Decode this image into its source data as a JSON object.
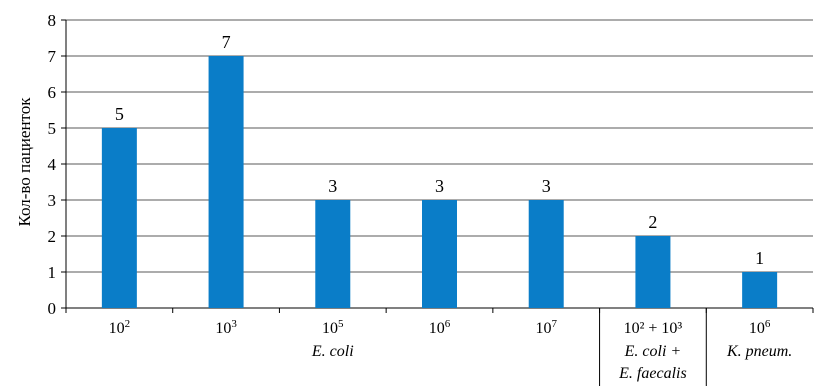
{
  "chart_data": {
    "type": "bar",
    "ylabel": "Кол-во пациенток",
    "xlabel": "",
    "title": "",
    "ylim": [
      0,
      8
    ],
    "yticks": [
      0,
      1,
      2,
      3,
      4,
      5,
      6,
      7,
      8
    ],
    "grid": true,
    "bar_color": "#0a7dc8",
    "categories": [
      {
        "main": "10",
        "exp": "2",
        "sub": []
      },
      {
        "main": "10",
        "exp": "3",
        "sub": []
      },
      {
        "main": "10",
        "exp": "5",
        "sub": [
          "E. coli"
        ]
      },
      {
        "main": "10",
        "exp": "6",
        "sub": []
      },
      {
        "main": "10",
        "exp": "7",
        "sub": []
      },
      {
        "main": "10² + 10³",
        "exp": "",
        "sub": [
          "E. coli +",
          "E. faecalis"
        ]
      },
      {
        "main": "10",
        "exp": "6",
        "sub": [
          "K. pneum."
        ]
      }
    ],
    "values": [
      5,
      7,
      3,
      3,
      3,
      2,
      1
    ],
    "group_separators_after": [
      4,
      5
    ]
  }
}
